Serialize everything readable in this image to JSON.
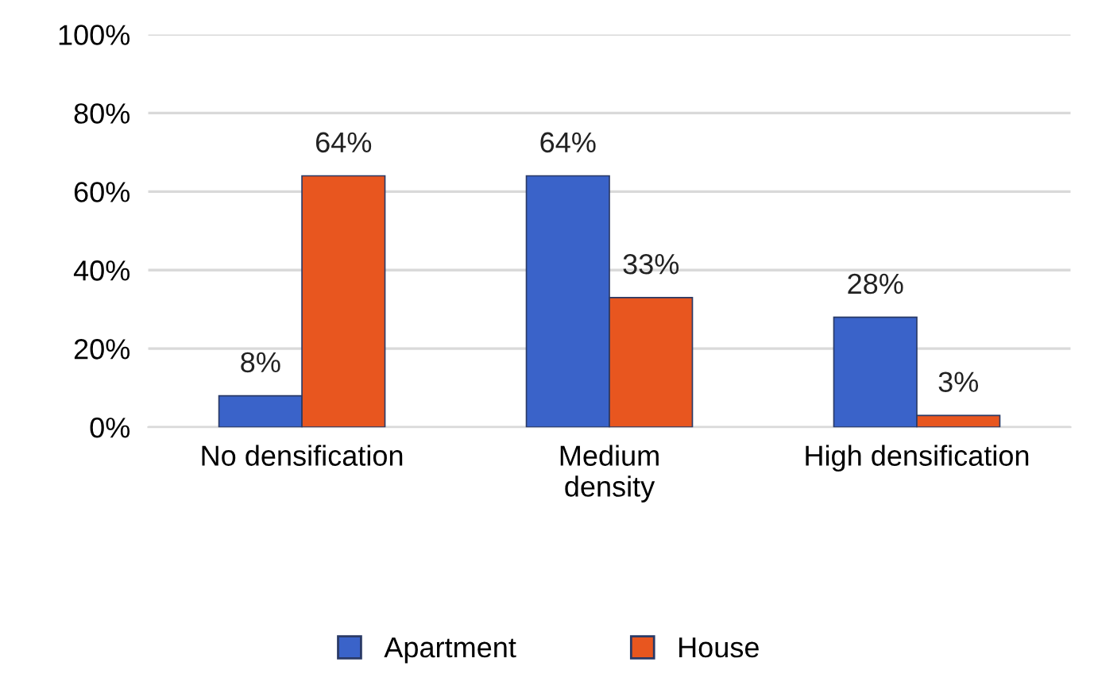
{
  "chart_data": {
    "type": "bar",
    "categories": [
      "No densification",
      "Medium\ndensity",
      "High densification"
    ],
    "series": [
      {
        "name": "Apartment",
        "color": "#3a63c9",
        "values": [
          8,
          64,
          28
        ],
        "value_labels": [
          "8%",
          "64%",
          "28%"
        ]
      },
      {
        "name": "House",
        "color": "#e8561f",
        "values": [
          64,
          33,
          3
        ],
        "value_labels": [
          "64%",
          "33%",
          "3%"
        ]
      }
    ],
    "ylim": [
      0,
      100
    ],
    "yticks": [
      {
        "value": 0,
        "label": "0%"
      },
      {
        "value": 20,
        "label": "20%"
      },
      {
        "value": 40,
        "label": "40%"
      },
      {
        "value": 60,
        "label": "60%"
      },
      {
        "value": 80,
        "label": "80%"
      },
      {
        "value": 100,
        "label": "100%"
      }
    ],
    "grid": "y",
    "legend": "bottom"
  }
}
